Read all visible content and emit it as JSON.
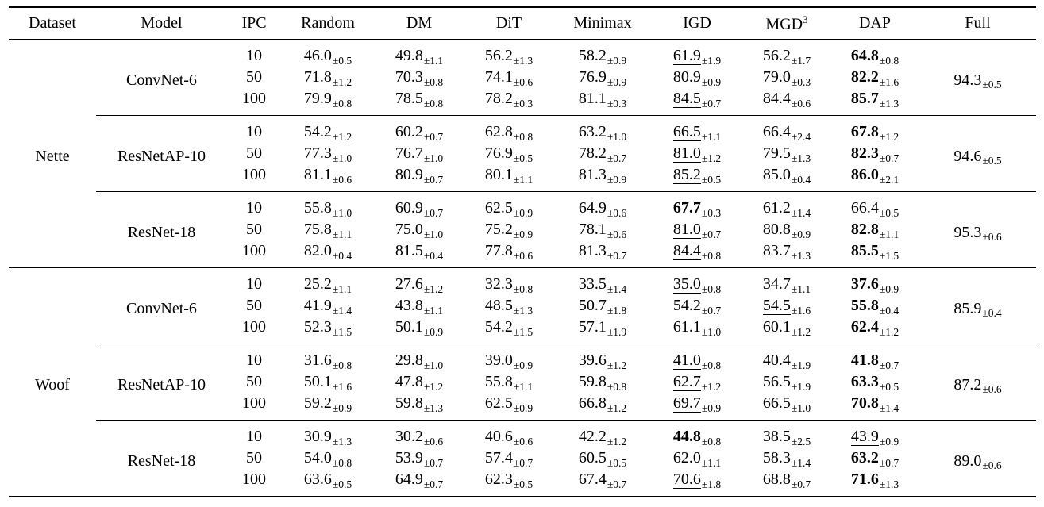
{
  "table": {
    "columns": [
      "Dataset",
      "Model",
      "IPC",
      "Random",
      "DM",
      "DiT",
      "Minimax",
      "IGD",
      "MGD",
      "DAP",
      "Full"
    ],
    "mgd_superscript": "3",
    "datasets": [
      {
        "name": "Nette",
        "models": [
          {
            "name": "ConvNet-6",
            "full": {
              "v": "94.3",
              "e": "±0.5"
            },
            "rows": [
              {
                "ipc": "10",
                "cells": [
                  {
                    "v": "46.0",
                    "e": "±0.5"
                  },
                  {
                    "v": "49.8",
                    "e": "±1.1"
                  },
                  {
                    "v": "56.2",
                    "e": "±1.3"
                  },
                  {
                    "v": "58.2",
                    "e": "±0.9"
                  },
                  {
                    "v": "61.9",
                    "e": "±1.9",
                    "s": "u"
                  },
                  {
                    "v": "56.2",
                    "e": "±1.7"
                  },
                  {
                    "v": "64.8",
                    "e": "±0.8",
                    "s": "b"
                  }
                ]
              },
              {
                "ipc": "50",
                "cells": [
                  {
                    "v": "71.8",
                    "e": "±1.2"
                  },
                  {
                    "v": "70.3",
                    "e": "±0.8"
                  },
                  {
                    "v": "74.1",
                    "e": "±0.6"
                  },
                  {
                    "v": "76.9",
                    "e": "±0.9"
                  },
                  {
                    "v": "80.9",
                    "e": "±0.9",
                    "s": "u"
                  },
                  {
                    "v": "79.0",
                    "e": "±0.3"
                  },
                  {
                    "v": "82.2",
                    "e": "±1.6",
                    "s": "b"
                  }
                ]
              },
              {
                "ipc": "100",
                "cells": [
                  {
                    "v": "79.9",
                    "e": "±0.8"
                  },
                  {
                    "v": "78.5",
                    "e": "±0.8"
                  },
                  {
                    "v": "78.2",
                    "e": "±0.3"
                  },
                  {
                    "v": "81.1",
                    "e": "±0.3"
                  },
                  {
                    "v": "84.5",
                    "e": "±0.7",
                    "s": "u"
                  },
                  {
                    "v": "84.4",
                    "e": "±0.6"
                  },
                  {
                    "v": "85.7",
                    "e": "±1.3",
                    "s": "b"
                  }
                ]
              }
            ]
          },
          {
            "name": "ResNetAP-10",
            "full": {
              "v": "94.6",
              "e": "±0.5"
            },
            "rows": [
              {
                "ipc": "10",
                "cells": [
                  {
                    "v": "54.2",
                    "e": "±1.2"
                  },
                  {
                    "v": "60.2",
                    "e": "±0.7"
                  },
                  {
                    "v": "62.8",
                    "e": "±0.8"
                  },
                  {
                    "v": "63.2",
                    "e": "±1.0"
                  },
                  {
                    "v": "66.5",
                    "e": "±1.1",
                    "s": "u"
                  },
                  {
                    "v": "66.4",
                    "e": "±2.4"
                  },
                  {
                    "v": "67.8",
                    "e": "±1.2",
                    "s": "b"
                  }
                ]
              },
              {
                "ipc": "50",
                "cells": [
                  {
                    "v": "77.3",
                    "e": "±1.0"
                  },
                  {
                    "v": "76.7",
                    "e": "±1.0"
                  },
                  {
                    "v": "76.9",
                    "e": "±0.5"
                  },
                  {
                    "v": "78.2",
                    "e": "±0.7"
                  },
                  {
                    "v": "81.0",
                    "e": "±1.2",
                    "s": "u"
                  },
                  {
                    "v": "79.5",
                    "e": "±1.3"
                  },
                  {
                    "v": "82.3",
                    "e": "±0.7",
                    "s": "b"
                  }
                ]
              },
              {
                "ipc": "100",
                "cells": [
                  {
                    "v": "81.1",
                    "e": "±0.6"
                  },
                  {
                    "v": "80.9",
                    "e": "±0.7"
                  },
                  {
                    "v": "80.1",
                    "e": "±1.1"
                  },
                  {
                    "v": "81.3",
                    "e": "±0.9"
                  },
                  {
                    "v": "85.2",
                    "e": "±0.5",
                    "s": "u"
                  },
                  {
                    "v": "85.0",
                    "e": "±0.4"
                  },
                  {
                    "v": "86.0",
                    "e": "±2.1",
                    "s": "b"
                  }
                ]
              }
            ]
          },
          {
            "name": "ResNet-18",
            "full": {
              "v": "95.3",
              "e": "±0.6"
            },
            "rows": [
              {
                "ipc": "10",
                "cells": [
                  {
                    "v": "55.8",
                    "e": "±1.0"
                  },
                  {
                    "v": "60.9",
                    "e": "±0.7"
                  },
                  {
                    "v": "62.5",
                    "e": "±0.9"
                  },
                  {
                    "v": "64.9",
                    "e": "±0.6"
                  },
                  {
                    "v": "67.7",
                    "e": "±0.3",
                    "s": "b"
                  },
                  {
                    "v": "61.2",
                    "e": "±1.4"
                  },
                  {
                    "v": "66.4",
                    "e": "±0.5",
                    "s": "u"
                  }
                ]
              },
              {
                "ipc": "50",
                "cells": [
                  {
                    "v": "75.8",
                    "e": "±1.1"
                  },
                  {
                    "v": "75.0",
                    "e": "±1.0"
                  },
                  {
                    "v": "75.2",
                    "e": "±0.9"
                  },
                  {
                    "v": "78.1",
                    "e": "±0.6"
                  },
                  {
                    "v": "81.0",
                    "e": "±0.7",
                    "s": "u"
                  },
                  {
                    "v": "80.8",
                    "e": "±0.9"
                  },
                  {
                    "v": "82.8",
                    "e": "±1.1",
                    "s": "b"
                  }
                ]
              },
              {
                "ipc": "100",
                "cells": [
                  {
                    "v": "82.0",
                    "e": "±0.4"
                  },
                  {
                    "v": "81.5",
                    "e": "±0.4"
                  },
                  {
                    "v": "77.8",
                    "e": "±0.6"
                  },
                  {
                    "v": "81.3",
                    "e": "±0.7"
                  },
                  {
                    "v": "84.4",
                    "e": "±0.8",
                    "s": "u"
                  },
                  {
                    "v": "83.7",
                    "e": "±1.3"
                  },
                  {
                    "v": "85.5",
                    "e": "±1.5",
                    "s": "b"
                  }
                ]
              }
            ]
          }
        ]
      },
      {
        "name": "Woof",
        "models": [
          {
            "name": "ConvNet-6",
            "full": {
              "v": "85.9",
              "e": "±0.4"
            },
            "rows": [
              {
                "ipc": "10",
                "cells": [
                  {
                    "v": "25.2",
                    "e": "±1.1"
                  },
                  {
                    "v": "27.6",
                    "e": "±1.2"
                  },
                  {
                    "v": "32.3",
                    "e": "±0.8"
                  },
                  {
                    "v": "33.5",
                    "e": "±1.4"
                  },
                  {
                    "v": "35.0",
                    "e": "±0.8",
                    "s": "u"
                  },
                  {
                    "v": "34.7",
                    "e": "±1.1"
                  },
                  {
                    "v": "37.6",
                    "e": "±0.9",
                    "s": "b"
                  }
                ]
              },
              {
                "ipc": "50",
                "cells": [
                  {
                    "v": "41.9",
                    "e": "±1.4"
                  },
                  {
                    "v": "43.8",
                    "e": "±1.1"
                  },
                  {
                    "v": "48.5",
                    "e": "±1.3"
                  },
                  {
                    "v": "50.7",
                    "e": "±1.8"
                  },
                  {
                    "v": "54.2",
                    "e": "±0.7"
                  },
                  {
                    "v": "54.5",
                    "e": "±1.6",
                    "s": "u"
                  },
                  {
                    "v": "55.8",
                    "e": "±0.4",
                    "s": "b"
                  }
                ]
              },
              {
                "ipc": "100",
                "cells": [
                  {
                    "v": "52.3",
                    "e": "±1.5"
                  },
                  {
                    "v": "50.1",
                    "e": "±0.9"
                  },
                  {
                    "v": "54.2",
                    "e": "±1.5"
                  },
                  {
                    "v": "57.1",
                    "e": "±1.9"
                  },
                  {
                    "v": "61.1",
                    "e": "±1.0",
                    "s": "u"
                  },
                  {
                    "v": "60.1",
                    "e": "±1.2"
                  },
                  {
                    "v": "62.4",
                    "e": "±1.2",
                    "s": "b"
                  }
                ]
              }
            ]
          },
          {
            "name": "ResNetAP-10",
            "full": {
              "v": "87.2",
              "e": "±0.6"
            },
            "rows": [
              {
                "ipc": "10",
                "cells": [
                  {
                    "v": "31.6",
                    "e": "±0.8"
                  },
                  {
                    "v": "29.8",
                    "e": "±1.0"
                  },
                  {
                    "v": "39.0",
                    "e": "±0.9"
                  },
                  {
                    "v": "39.6",
                    "e": "±1.2"
                  },
                  {
                    "v": "41.0",
                    "e": "±0.8",
                    "s": "u"
                  },
                  {
                    "v": "40.4",
                    "e": "±1.9"
                  },
                  {
                    "v": "41.8",
                    "e": "±0.7",
                    "s": "b"
                  }
                ]
              },
              {
                "ipc": "50",
                "cells": [
                  {
                    "v": "50.1",
                    "e": "±1.6"
                  },
                  {
                    "v": "47.8",
                    "e": "±1.2"
                  },
                  {
                    "v": "55.8",
                    "e": "±1.1"
                  },
                  {
                    "v": "59.8",
                    "e": "±0.8"
                  },
                  {
                    "v": "62.7",
                    "e": "±1.2",
                    "s": "u"
                  },
                  {
                    "v": "56.5",
                    "e": "±1.9"
                  },
                  {
                    "v": "63.3",
                    "e": "±0.5",
                    "s": "b"
                  }
                ]
              },
              {
                "ipc": "100",
                "cells": [
                  {
                    "v": "59.2",
                    "e": "±0.9"
                  },
                  {
                    "v": "59.8",
                    "e": "±1.3"
                  },
                  {
                    "v": "62.5",
                    "e": "±0.9"
                  },
                  {
                    "v": "66.8",
                    "e": "±1.2"
                  },
                  {
                    "v": "69.7",
                    "e": "±0.9",
                    "s": "u"
                  },
                  {
                    "v": "66.5",
                    "e": "±1.0"
                  },
                  {
                    "v": "70.8",
                    "e": "±1.4",
                    "s": "b"
                  }
                ]
              }
            ]
          },
          {
            "name": "ResNet-18",
            "full": {
              "v": "89.0",
              "e": "±0.6"
            },
            "rows": [
              {
                "ipc": "10",
                "cells": [
                  {
                    "v": "30.9",
                    "e": "±1.3"
                  },
                  {
                    "v": "30.2",
                    "e": "±0.6"
                  },
                  {
                    "v": "40.6",
                    "e": "±0.6"
                  },
                  {
                    "v": "42.2",
                    "e": "±1.2"
                  },
                  {
                    "v": "44.8",
                    "e": "±0.8",
                    "s": "b"
                  },
                  {
                    "v": "38.5",
                    "e": "±2.5"
                  },
                  {
                    "v": "43.9",
                    "e": "±0.9",
                    "s": "u"
                  }
                ]
              },
              {
                "ipc": "50",
                "cells": [
                  {
                    "v": "54.0",
                    "e": "±0.8"
                  },
                  {
                    "v": "53.9",
                    "e": "±0.7"
                  },
                  {
                    "v": "57.4",
                    "e": "±0.7"
                  },
                  {
                    "v": "60.5",
                    "e": "±0.5"
                  },
                  {
                    "v": "62.0",
                    "e": "±1.1",
                    "s": "u"
                  },
                  {
                    "v": "58.3",
                    "e": "±1.4"
                  },
                  {
                    "v": "63.2",
                    "e": "±0.7",
                    "s": "b"
                  }
                ]
              },
              {
                "ipc": "100",
                "cells": [
                  {
                    "v": "63.6",
                    "e": "±0.5"
                  },
                  {
                    "v": "64.9",
                    "e": "±0.7"
                  },
                  {
                    "v": "62.3",
                    "e": "±0.5"
                  },
                  {
                    "v": "67.4",
                    "e": "±0.7"
                  },
                  {
                    "v": "70.6",
                    "e": "±1.8",
                    "s": "u"
                  },
                  {
                    "v": "68.8",
                    "e": "±0.7"
                  },
                  {
                    "v": "71.6",
                    "e": "±1.3",
                    "s": "b"
                  }
                ]
              }
            ]
          }
        ]
      }
    ]
  }
}
